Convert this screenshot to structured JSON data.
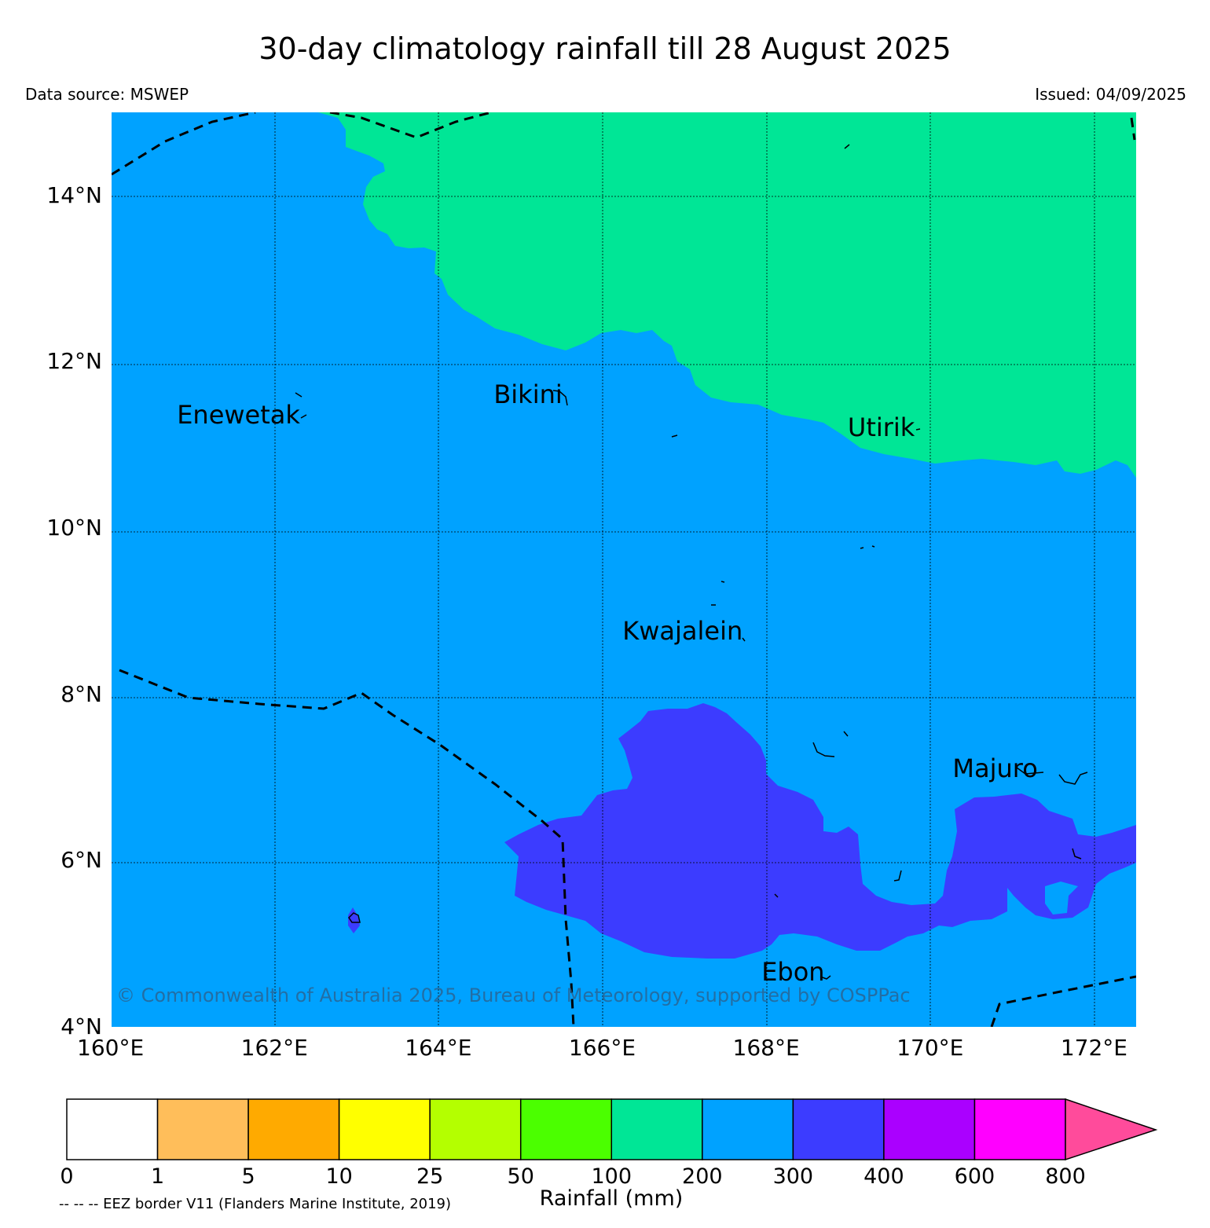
{
  "header": {
    "title": "30-day climatology rainfall till 28 August 2025",
    "data_source": "Data source: MSWEP",
    "issued": "Issued: 04/09/2025"
  },
  "map": {
    "extent": {
      "lon": [
        160,
        172.5
      ],
      "lat": [
        4,
        15
      ]
    },
    "lon_ticks": [
      {
        "value": 160,
        "label": "160°E"
      },
      {
        "value": 162,
        "label": "162°E"
      },
      {
        "value": 164,
        "label": "164°E"
      },
      {
        "value": 166,
        "label": "166°E"
      },
      {
        "value": 168,
        "label": "168°E"
      },
      {
        "value": 170,
        "label": "170°E"
      },
      {
        "value": 172,
        "label": "172°E"
      }
    ],
    "lat_ticks": [
      {
        "value": 4,
        "label": "4°N"
      },
      {
        "value": 6,
        "label": "6°N"
      },
      {
        "value": 8,
        "label": "8°N"
      },
      {
        "value": 10,
        "label": "10°N"
      },
      {
        "value": 12,
        "label": "12°N"
      },
      {
        "value": 14,
        "label": "14°N"
      }
    ],
    "grid": true,
    "places": [
      {
        "name": "Enewetak",
        "lon": 162.3,
        "lat": 11.35
      },
      {
        "name": "Bikini",
        "lon": 165.5,
        "lat": 11.6
      },
      {
        "name": "Utirik",
        "lon": 169.8,
        "lat": 11.2
      },
      {
        "name": "Kwajalein",
        "lon": 167.7,
        "lat": 8.75
      },
      {
        "name": "Majuro",
        "lon": 171.3,
        "lat": 7.1
      },
      {
        "name": "Ebon",
        "lon": 168.7,
        "lat": 4.65
      }
    ],
    "copyright": "© Commonwealth of Australia 2025, Bureau of Meteorology, supported by COSPPac",
    "colors": {
      "band_200_300": "#00a2ff",
      "band_100_200": "#00e696",
      "band_300_400": "#3c3cff"
    }
  },
  "colorbar": {
    "title": "Rainfall (mm)",
    "boundaries": [
      "0",
      "1",
      "5",
      "10",
      "25",
      "50",
      "100",
      "200",
      "300",
      "400",
      "600",
      "800"
    ],
    "colors": [
      "#ffffff",
      "#ffbe5a",
      "#ffaa00",
      "#ffff00",
      "#b4ff00",
      "#4bff00",
      "#00e696",
      "#00a2ff",
      "#3c3cff",
      "#aa00ff",
      "#ff00ff"
    ],
    "extend_color": "#ff4b9b"
  },
  "footnote": "-- -- -- EEZ border V11 (Flanders Marine Institute, 2019)"
}
